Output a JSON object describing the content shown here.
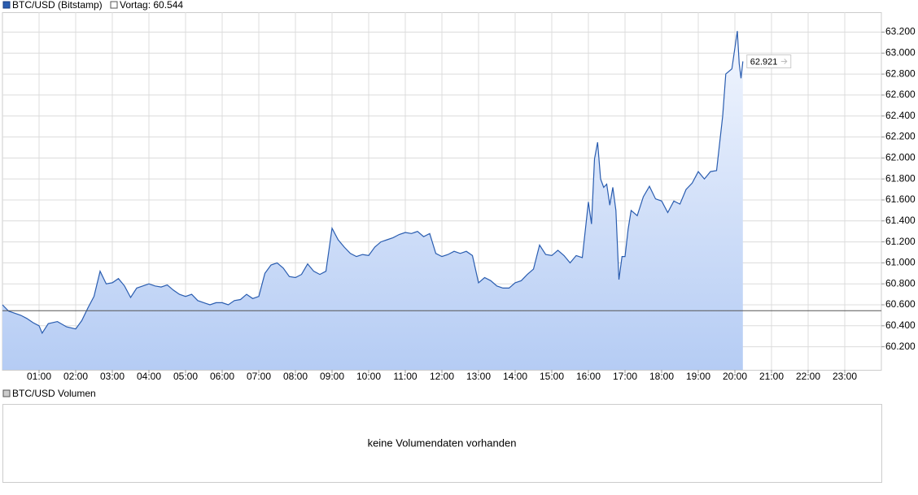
{
  "chart_data": {
    "type": "line",
    "legend": [
      "BTC/USD (Bitstamp)"
    ],
    "reference_line": {
      "name": "Vortag: 60.544",
      "value": 60544,
      "color": "#555555"
    },
    "x": [
      "00:00",
      "00:10",
      "00:20",
      "00:30",
      "00:40",
      "00:50",
      "01:00",
      "01:05",
      "01:15",
      "01:30",
      "01:45",
      "02:00",
      "02:10",
      "02:20",
      "02:30",
      "02:40",
      "02:50",
      "03:00",
      "03:10",
      "03:20",
      "03:30",
      "03:40",
      "03:50",
      "04:00",
      "04:10",
      "04:20",
      "04:30",
      "04:40",
      "04:50",
      "05:00",
      "05:10",
      "05:20",
      "05:30",
      "05:40",
      "05:50",
      "06:00",
      "06:10",
      "06:20",
      "06:30",
      "06:40",
      "06:50",
      "07:00",
      "07:10",
      "07:20",
      "07:30",
      "07:40",
      "07:50",
      "08:00",
      "08:10",
      "08:20",
      "08:30",
      "08:40",
      "08:50",
      "09:00",
      "09:10",
      "09:20",
      "09:30",
      "09:40",
      "09:50",
      "10:00",
      "10:10",
      "10:20",
      "10:30",
      "10:40",
      "10:50",
      "11:00",
      "11:10",
      "11:20",
      "11:30",
      "11:40",
      "11:50",
      "12:00",
      "12:10",
      "12:20",
      "12:30",
      "12:40",
      "12:50",
      "13:00",
      "13:10",
      "13:20",
      "13:30",
      "13:40",
      "13:50",
      "14:00",
      "14:10",
      "14:20",
      "14:30",
      "14:40",
      "14:50",
      "15:00",
      "15:10",
      "15:20",
      "15:30",
      "15:40",
      "15:50",
      "16:00",
      "16:05",
      "16:10",
      "16:15",
      "16:20",
      "16:25",
      "16:30",
      "16:35",
      "16:40",
      "16:45",
      "16:50",
      "16:55",
      "17:00",
      "17:05",
      "17:10",
      "17:20",
      "17:30",
      "17:40",
      "17:50",
      "18:00",
      "18:10",
      "18:20",
      "18:30",
      "18:40",
      "18:50",
      "19:00",
      "19:10",
      "19:20",
      "19:30",
      "19:40",
      "19:45",
      "19:55",
      "20:00",
      "20:04",
      "20:07",
      "20:10",
      "20:13"
    ],
    "series": [
      {
        "name": "BTC/USD (Bitstamp)",
        "color": "#2a5db0",
        "values": [
          60600,
          60540,
          60520,
          60500,
          60470,
          60430,
          60400,
          60330,
          60420,
          60440,
          60390,
          60370,
          60450,
          60570,
          60680,
          60920,
          60800,
          60810,
          60850,
          60780,
          60670,
          60760,
          60780,
          60800,
          60780,
          60770,
          60790,
          60740,
          60700,
          60680,
          60700,
          60640,
          60620,
          60600,
          60620,
          60620,
          60600,
          60640,
          60650,
          60700,
          60660,
          60680,
          60900,
          60980,
          61000,
          60950,
          60870,
          60860,
          60890,
          60990,
          60920,
          60890,
          60920,
          61330,
          61220,
          61150,
          61090,
          61060,
          61080,
          61070,
          61150,
          61200,
          61220,
          61240,
          61270,
          61290,
          61280,
          61300,
          61250,
          61280,
          61090,
          61060,
          61080,
          61110,
          61090,
          61110,
          61070,
          60810,
          60860,
          60830,
          60780,
          60760,
          60760,
          60810,
          60830,
          60890,
          60940,
          61170,
          61080,
          61070,
          61120,
          61070,
          61000,
          61070,
          61050,
          61580,
          61370,
          61990,
          62150,
          61800,
          61720,
          61750,
          61550,
          61720,
          61500,
          60840,
          61060,
          61060,
          61320,
          61500,
          61450,
          61630,
          61730,
          61610,
          61590,
          61480,
          61590,
          61560,
          61700,
          61760,
          61870,
          61800,
          61870,
          61880,
          62400,
          62800,
          62850,
          63050,
          63210,
          62900,
          62760,
          62921
        ]
      }
    ],
    "last_value_label": {
      "value": 62921,
      "label": "62.921"
    },
    "xlim": [
      "00:00",
      "24:00"
    ],
    "xticks": [
      "01:00",
      "02:00",
      "03:00",
      "04:00",
      "05:00",
      "06:00",
      "07:00",
      "08:00",
      "09:00",
      "10:00",
      "11:00",
      "12:00",
      "13:00",
      "14:00",
      "15:00",
      "16:00",
      "17:00",
      "18:00",
      "19:00",
      "20:00",
      "21:00",
      "22:00",
      "23:00"
    ],
    "ylim": [
      59980,
      63390
    ],
    "yticks": [
      {
        "value": 60200,
        "label": "60.200"
      },
      {
        "value": 60400,
        "label": "60.400"
      },
      {
        "value": 60600,
        "label": "60.600"
      },
      {
        "value": 60800,
        "label": "60.800"
      },
      {
        "value": 61000,
        "label": "61.000"
      },
      {
        "value": 61200,
        "label": "61.200"
      },
      {
        "value": 61400,
        "label": "61.400"
      },
      {
        "value": 61600,
        "label": "61.600"
      },
      {
        "value": 61800,
        "label": "61.800"
      },
      {
        "value": 62000,
        "label": "62.000"
      },
      {
        "value": 62200,
        "label": "62.200"
      },
      {
        "value": 62400,
        "label": "62.400"
      },
      {
        "value": 62600,
        "label": "62.600"
      },
      {
        "value": 62800,
        "label": "62.800"
      },
      {
        "value": 63000,
        "label": "63.000"
      },
      {
        "value": 63200,
        "label": "63.200"
      }
    ],
    "grid": true,
    "volume_panel": {
      "title": "BTC/USD Volumen",
      "message": "keine Volumendaten vorhanden"
    }
  }
}
